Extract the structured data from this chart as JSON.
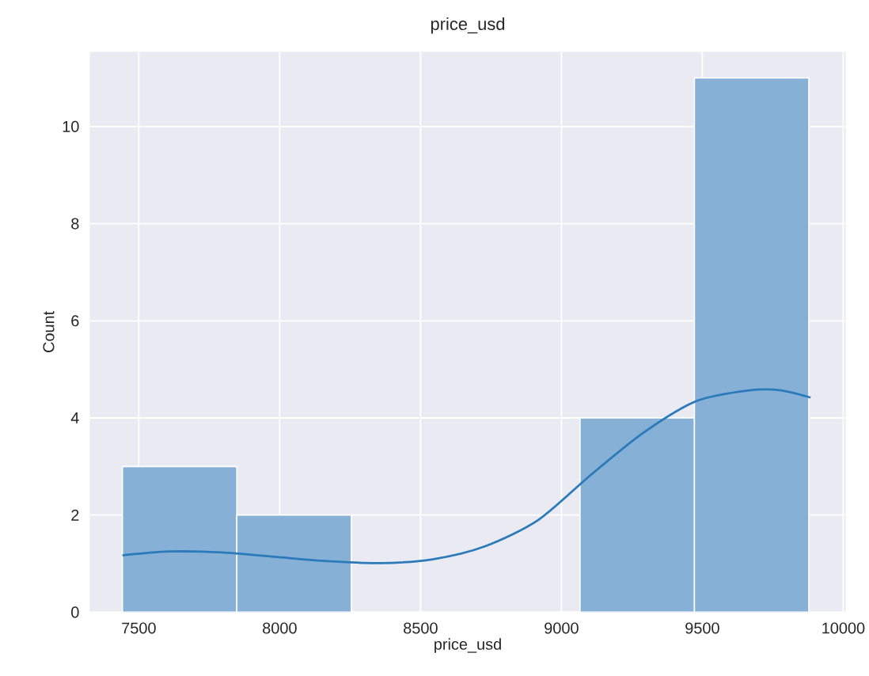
{
  "chart_data": {
    "type": "histogram",
    "title": "price_usd",
    "xlabel": "price_usd",
    "ylabel": "Count",
    "bins": [
      7442,
      7848,
      8254,
      8660,
      9066,
      9472,
      9878
    ],
    "values": [
      3,
      2,
      0,
      0,
      4,
      11
    ],
    "color": "#86b0d5",
    "series": [
      {
        "type": "line",
        "color": "#2b7bba",
        "x": [
          7442,
          7607,
          7794,
          7981,
          8169,
          8356,
          8543,
          8730,
          8918,
          9105,
          9292,
          9480,
          9667,
          9779,
          9884
        ],
        "values": [
          1.17,
          1.25,
          1.23,
          1.14,
          1.05,
          1.01,
          1.09,
          1.36,
          1.9,
          2.83,
          3.7,
          4.35,
          4.57,
          4.57,
          4.42
        ]
      }
    ],
    "xlim": [
      7326,
      10009
    ],
    "ylim": [
      0,
      11.54
    ],
    "xticks": [
      7500,
      8000,
      8500,
      9000,
      9500,
      10000
    ],
    "yticks": [
      0,
      2,
      4,
      6,
      8,
      10
    ],
    "grid": true
  }
}
